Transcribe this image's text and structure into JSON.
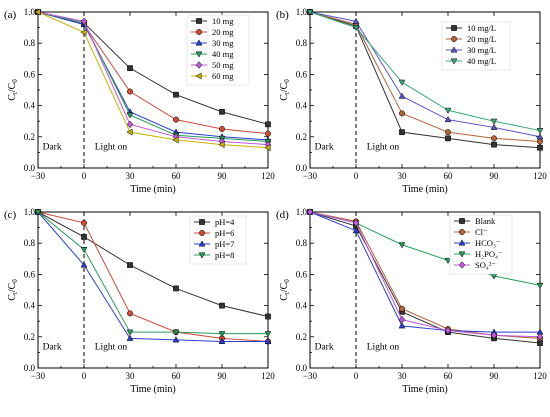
{
  "colors": {
    "black": "#333333",
    "red": "#cc4b3b",
    "blue": "#2a3ecf",
    "green": "#2a9a5a",
    "violet": "#c05ad8",
    "olive": "#c8b400",
    "brown": "#b0643a",
    "slate": "#5a56c8",
    "teal": "#3aa87a"
  },
  "chart_data": [
    {
      "panel": "(a)",
      "type": "line",
      "x": [
        -30,
        0,
        30,
        60,
        90,
        120
      ],
      "xticks": [
        "-30",
        "0",
        "30",
        "60",
        "90",
        "120"
      ],
      "yticks": [
        "0.0",
        "0.2",
        "0.4",
        "0.6",
        "0.8",
        "1.0"
      ],
      "xlim": [
        -30,
        120
      ],
      "ylim": [
        0,
        1.0
      ],
      "xlabel": "Time (min)",
      "ylabel": "Ct/C0",
      "annotations": {
        "dark": "Dark",
        "light": "Light on"
      },
      "legend": "top-right",
      "series": [
        {
          "name": "10 mg",
          "marker": "square",
          "color": "#333333",
          "values": [
            1.0,
            0.93,
            0.64,
            0.47,
            0.36,
            0.28
          ]
        },
        {
          "name": "20 mg",
          "marker": "circle",
          "color": "#cc4b3b",
          "values": [
            1.0,
            0.92,
            0.49,
            0.31,
            0.25,
            0.22
          ]
        },
        {
          "name": "30 mg",
          "marker": "triangle-up",
          "color": "#2a3ecf",
          "values": [
            1.0,
            0.92,
            0.36,
            0.23,
            0.2,
            0.18
          ]
        },
        {
          "name": "40 mg",
          "marker": "triangle-down",
          "color": "#2a9a5a",
          "values": [
            1.0,
            0.93,
            0.34,
            0.21,
            0.19,
            0.17
          ]
        },
        {
          "name": "50 mg",
          "marker": "diamond",
          "color": "#c05ad8",
          "values": [
            1.0,
            0.94,
            0.28,
            0.2,
            0.17,
            0.15
          ]
        },
        {
          "name": "60 mg",
          "marker": "triangle-left",
          "color": "#c8b400",
          "values": [
            1.0,
            0.87,
            0.23,
            0.18,
            0.15,
            0.13
          ]
        }
      ]
    },
    {
      "panel": "(b)",
      "type": "line",
      "x": [
        -30,
        0,
        30,
        60,
        90,
        120
      ],
      "xticks": [
        "-30",
        "0",
        "30",
        "60",
        "90",
        "120"
      ],
      "yticks": [
        "0.0",
        "0.2",
        "0.4",
        "0.6",
        "0.8",
        "1.0"
      ],
      "xlim": [
        -30,
        120
      ],
      "ylim": [
        0,
        1.0
      ],
      "xlabel": "Time (min)",
      "ylabel": "Ct/C0",
      "annotations": {
        "dark": "Dark",
        "light": "Light on"
      },
      "legend": "top-right",
      "series": [
        {
          "name": "10 mg/L",
          "marker": "square",
          "color": "#333333",
          "values": [
            1.0,
            0.91,
            0.23,
            0.19,
            0.15,
            0.13
          ]
        },
        {
          "name": "20 mg/L",
          "marker": "circle",
          "color": "#b0643a",
          "values": [
            1.0,
            0.92,
            0.35,
            0.23,
            0.19,
            0.17
          ]
        },
        {
          "name": "30 mg/L",
          "marker": "triangle-up",
          "color": "#5a56c8",
          "values": [
            1.0,
            0.94,
            0.46,
            0.31,
            0.26,
            0.2
          ]
        },
        {
          "name": "40 mg/L",
          "marker": "triangle-down",
          "color": "#3aa87a",
          "values": [
            1.0,
            0.9,
            0.55,
            0.37,
            0.3,
            0.24
          ]
        }
      ]
    },
    {
      "panel": "(c)",
      "type": "line",
      "x": [
        -30,
        0,
        30,
        60,
        90,
        120
      ],
      "xticks": [
        "-30",
        "0",
        "30",
        "60",
        "90",
        "120"
      ],
      "yticks": [
        "0.0",
        "0.2",
        "0.4",
        "0.6",
        "0.8",
        "1.0"
      ],
      "xlim": [
        -30,
        120
      ],
      "ylim": [
        0,
        1.0
      ],
      "xlabel": "Time (min)",
      "ylabel": "Ct/C0",
      "annotations": {
        "dark": "Dark",
        "light": "Light on"
      },
      "legend": "top-right",
      "series": [
        {
          "name": "pH=4",
          "marker": "square",
          "color": "#333333",
          "values": [
            1.0,
            0.84,
            0.66,
            0.51,
            0.4,
            0.33
          ]
        },
        {
          "name": "pH=6",
          "marker": "circle",
          "color": "#cc4b3b",
          "values": [
            1.0,
            0.93,
            0.35,
            0.23,
            0.19,
            0.17
          ]
        },
        {
          "name": "pH=7",
          "marker": "triangle-up",
          "color": "#2a3ecf",
          "values": [
            1.0,
            0.66,
            0.19,
            0.18,
            0.17,
            0.17
          ]
        },
        {
          "name": "pH=8",
          "marker": "triangle-down",
          "color": "#2a9a5a",
          "values": [
            1.0,
            0.76,
            0.23,
            0.23,
            0.22,
            0.22
          ]
        }
      ]
    },
    {
      "panel": "(d)",
      "type": "line",
      "x": [
        -30,
        0,
        30,
        60,
        90,
        120
      ],
      "xticks": [
        "-30",
        "0",
        "30",
        "60",
        "90",
        "120"
      ],
      "yticks": [
        "0.0",
        "0.2",
        "0.4",
        "0.6",
        "0.8",
        "1.0"
      ],
      "xlim": [
        -30,
        120
      ],
      "ylim": [
        0,
        1.0
      ],
      "xlabel": "Time (min)",
      "ylabel": "Ct/C0",
      "annotations": {
        "dark": "Dark",
        "light": "Light on"
      },
      "legend": "top-right",
      "series": [
        {
          "name": "Blank",
          "marker": "square",
          "color": "#333333",
          "values": [
            1.0,
            0.91,
            0.36,
            0.23,
            0.19,
            0.16
          ]
        },
        {
          "name": "Cl⁻",
          "marker": "circle",
          "color": "#b0643a",
          "values": [
            1.0,
            0.94,
            0.38,
            0.25,
            0.21,
            0.19
          ]
        },
        {
          "name": "HCO₃⁻",
          "marker": "triangle-up",
          "color": "#2a3ecf",
          "values": [
            1.0,
            0.88,
            0.27,
            0.24,
            0.23,
            0.23
          ]
        },
        {
          "name": "H₂PO₄⁻",
          "marker": "triangle-down",
          "color": "#2a9a5a",
          "values": [
            1.0,
            0.93,
            0.79,
            0.69,
            0.59,
            0.53
          ]
        },
        {
          "name": "SO₄²⁻",
          "marker": "diamond",
          "color": "#c05ad8",
          "values": [
            1.0,
            0.93,
            0.31,
            0.24,
            0.21,
            0.2
          ]
        }
      ]
    }
  ]
}
